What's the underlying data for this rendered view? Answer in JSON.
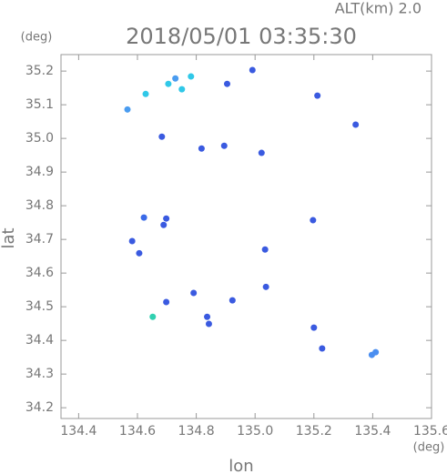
{
  "chart_data": {
    "type": "scatter",
    "title": "2018/05/01 03:35:30",
    "subtitle": "ALT(km) 2.0",
    "x_label": "lon",
    "y_label": "lat",
    "x_unit": "(deg)",
    "y_unit": "(deg)",
    "x": [
      134.566,
      134.628,
      134.705,
      134.751,
      134.782,
      134.729,
      134.991,
      134.905,
      135.212,
      135.342,
      134.683,
      134.895,
      134.818,
      135.022,
      134.622,
      134.698,
      134.689,
      135.197,
      134.606,
      135.034,
      135.037,
      134.791,
      134.698,
      134.652,
      134.837,
      134.843,
      134.923,
      135.2,
      135.228,
      135.397,
      135.41,
      134.582
    ],
    "values": [
      35.086,
      35.132,
      35.162,
      35.146,
      35.184,
      35.178,
      35.203,
      35.162,
      35.127,
      35.041,
      35.005,
      34.978,
      34.97,
      34.957,
      34.765,
      34.762,
      34.743,
      34.757,
      34.659,
      34.67,
      34.559,
      34.541,
      34.514,
      34.47,
      34.47,
      34.449,
      34.519,
      34.438,
      34.376,
      34.357,
      34.365,
      34.695
    ],
    "colors": [
      "#4a9cf0",
      "#30c8e8",
      "#30c8e8",
      "#30c8e8",
      "#30c8e8",
      "#4a9cf0",
      "#3a5ae0",
      "#3a5ae0",
      "#3a5ae0",
      "#3a5ae0",
      "#3a5ae0",
      "#3a5ae0",
      "#3a5ae0",
      "#3a5ae0",
      "#3a6ae8",
      "#3a5ae0",
      "#3a5ae0",
      "#3a5ae0",
      "#3a5ae0",
      "#3a5ae0",
      "#3a5ae0",
      "#3a5ae0",
      "#3a5ae0",
      "#30d0b0",
      "#3a5ae0",
      "#3a5ae0",
      "#3a5ae0",
      "#3a5ae0",
      "#3a5ae0",
      "#4a8ef0",
      "#4a8ef0",
      "#3a5ae0"
    ],
    "xlim": [
      134.34,
      135.6
    ],
    "ylim": [
      34.168,
      35.249
    ],
    "xticks": [
      134.4,
      134.6,
      134.8,
      {
        "value": 135,
        "label": "135.0"
      },
      135.2,
      135.4,
      135.6
    ],
    "yticks": [
      34.2,
      34.3,
      34.4,
      34.5,
      34.6,
      34.7,
      34.8,
      34.9,
      {
        "value": 35,
        "label": "35.0"
      },
      35.1,
      35.2
    ]
  }
}
